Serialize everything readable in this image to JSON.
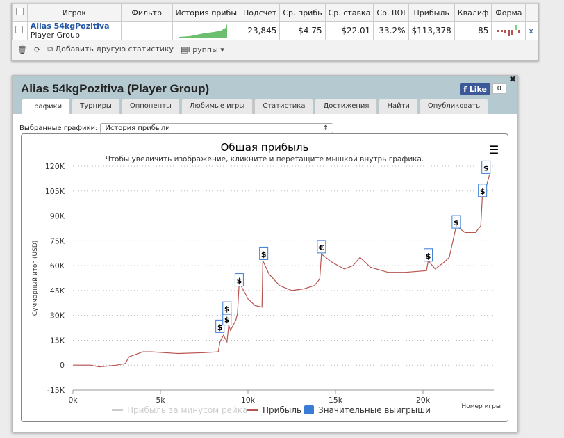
{
  "table": {
    "headers": [
      "Игрок",
      "Фильтр",
      "История прибы",
      "Подсчет",
      "Ср. прибь",
      "Ср. ставка",
      "Ср. ROI",
      "Прибыль",
      "Квалиф",
      "Форма"
    ],
    "row": {
      "name": "Alias 54kgPozitiva",
      "group": "Player Group",
      "count": "23,845",
      "avg_profit": "$4.75",
      "avg_stake": "$22.01",
      "roi": "33.2%",
      "profit": "$113,378",
      "qual": "85",
      "remove": "x"
    },
    "toolbar": {
      "add": "Добавить другую статистику",
      "groups": "Группы"
    }
  },
  "panel": {
    "title": "Alias 54kgPozitiva (Player Group)",
    "like": "Like",
    "like_count": "0",
    "tabs": [
      "Графики",
      "Турниры",
      "Оппоненты",
      "Любимые игры",
      "Статистика",
      "Достижения",
      "Найти",
      "Опубликовать"
    ],
    "select_label": "Выбранные графики:",
    "select_value": "История прибыли"
  },
  "chart_data": {
    "type": "line",
    "title": "Общая прибыль",
    "subtitle": "Чтобы увеличить изображение, кликните и перетащите мышкой внутрь графика.",
    "ylabel": "Суммарный итог (USD)",
    "xlabel": "Номер игры",
    "xlim": [
      0,
      24000
    ],
    "ylim": [
      -15000,
      120000
    ],
    "xticks": [
      "0k",
      "5k",
      "10k",
      "15k",
      "20k"
    ],
    "yticks": [
      "120K",
      "105K",
      "90K",
      "75K",
      "60K",
      "45K",
      "30K",
      "15K",
      "0",
      "-15K"
    ],
    "legend": [
      "Прибыль за минусом рейка",
      "Прибыль",
      "Значительные выигрыши"
    ],
    "series": [
      {
        "name": "Прибыль",
        "color": "#b85450",
        "x": [
          0,
          1000,
          1500,
          2500,
          3000,
          3200,
          4000,
          4500,
          6000,
          7500,
          8300,
          8400,
          8600,
          8800,
          8900,
          9000,
          9300,
          9400,
          9500,
          9700,
          10000,
          10400,
          10800,
          10850,
          11200,
          11800,
          12500,
          13200,
          13800,
          14100,
          14200,
          14800,
          15500,
          16000,
          16400,
          17000,
          18000,
          19000,
          20200,
          20300,
          20700,
          21200,
          21500,
          21900,
          22400,
          23000,
          23300,
          23400,
          23600,
          23800
        ],
        "y": [
          0,
          0,
          -1000,
          0,
          1000,
          5000,
          8000,
          8000,
          7000,
          7500,
          8000,
          14000,
          18000,
          14000,
          24000,
          21000,
          27000,
          31000,
          50000,
          46000,
          40000,
          36000,
          35000,
          63000,
          55000,
          48000,
          45000,
          46000,
          48000,
          52000,
          67000,
          62000,
          58000,
          60000,
          65000,
          59000,
          56000,
          56000,
          57000,
          63000,
          58000,
          62000,
          65000,
          84000,
          80000,
          80000,
          84000,
          104000,
          107000,
          115000
        ]
      }
    ],
    "flags": [
      {
        "x": 8400,
        "y": 23000,
        "t": "$"
      },
      {
        "x": 8800,
        "y": 27500,
        "t": "$"
      },
      {
        "x": 8800,
        "y": 34000,
        "t": "$"
      },
      {
        "x": 9500,
        "y": 51000,
        "t": "$"
      },
      {
        "x": 10900,
        "y": 67000,
        "t": "$"
      },
      {
        "x": 14200,
        "y": 71000,
        "t": "€"
      },
      {
        "x": 20300,
        "y": 66000,
        "t": "$"
      },
      {
        "x": 21900,
        "y": 86000,
        "t": "$"
      },
      {
        "x": 23400,
        "y": 105000,
        "t": "$"
      },
      {
        "x": 23600,
        "y": 119000,
        "t": "$"
      }
    ]
  }
}
